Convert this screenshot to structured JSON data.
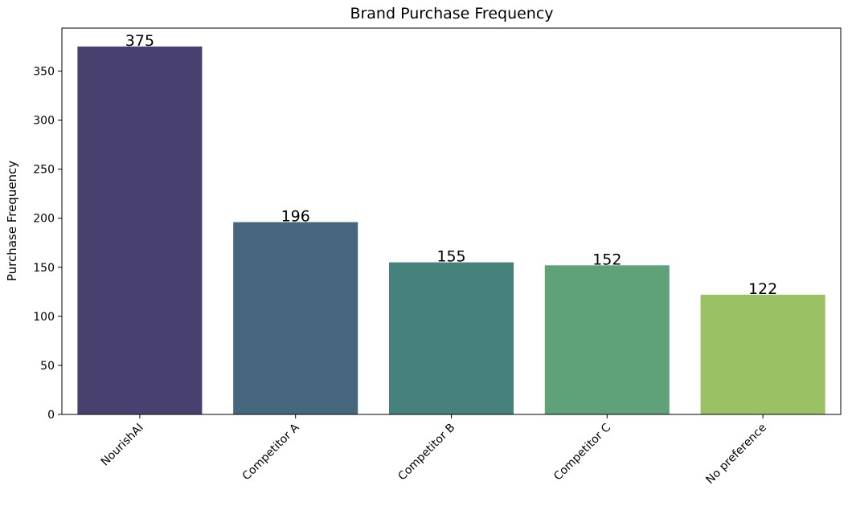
{
  "chart_data": {
    "type": "bar",
    "title": "Brand Purchase Frequency",
    "xlabel": "",
    "ylabel": "Purchase Frequency",
    "categories": [
      "NourishAI",
      "Competitor A",
      "Competitor B",
      "Competitor C",
      "No preference"
    ],
    "values": [
      375,
      196,
      155,
      152,
      122
    ],
    "data_labels": [
      "375",
      "196",
      "155",
      "152",
      "122"
    ],
    "colors": [
      "#48416f",
      "#45667d",
      "#46817c",
      "#5fa27a",
      "#9ac265"
    ],
    "ylim": [
      0,
      393.75
    ],
    "yticks": [
      0,
      50,
      100,
      150,
      200,
      250,
      300,
      350
    ],
    "ytick_labels": [
      "0",
      "50",
      "100",
      "150",
      "200",
      "250",
      "300",
      "350"
    ],
    "grid": false,
    "legend": "none"
  }
}
